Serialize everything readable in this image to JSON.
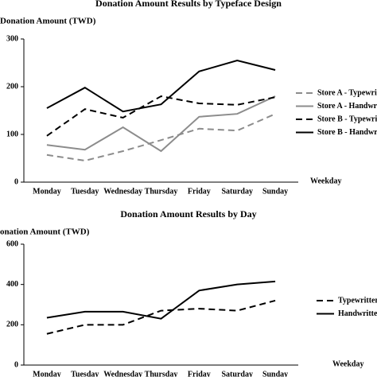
{
  "chart_data": [
    {
      "type": "line",
      "title": "Donation Amount Results by Typeface Design",
      "y_label": "Donation Amount (TWD)",
      "x_label": "Weekday",
      "categories": [
        "Monday",
        "Tuesday",
        "Wednesday",
        "Thursday",
        "Friday",
        "Saturday",
        "Sunday"
      ],
      "ylim": [
        0,
        300
      ],
      "yticks": [
        0,
        100,
        200,
        300
      ],
      "series": [
        {
          "name": "Store A - Typewritten",
          "color": "#8c8c8c",
          "line_style": "dashed",
          "values": [
            57,
            45,
            65,
            88,
            112,
            108,
            143
          ]
        },
        {
          "name": "Store A - Handwritten",
          "color": "#8c8c8c",
          "line_style": "solid",
          "values": [
            78,
            68,
            115,
            65,
            137,
            143,
            180
          ]
        },
        {
          "name": "Store B - Typewritten",
          "color": "#000000",
          "line_style": "dashed",
          "values": [
            97,
            153,
            135,
            180,
            165,
            162,
            178
          ]
        },
        {
          "name": "Store B - Handwritten",
          "color": "#000000",
          "line_style": "solid",
          "values": [
            155,
            198,
            148,
            163,
            232,
            255,
            235
          ]
        }
      ]
    },
    {
      "type": "line",
      "title": "Donation Amount Results by Day",
      "y_label": "Donation Amount (TWD)",
      "x_label": "Weekday",
      "categories": [
        "Monday",
        "Tuesday",
        "Wednesday",
        "Thursday",
        "Friday",
        "Saturday",
        "Sunday"
      ],
      "ylim": [
        0,
        600
      ],
      "yticks": [
        0,
        200,
        400,
        600
      ],
      "series": [
        {
          "name": "Typewritten",
          "color": "#000000",
          "line_style": "dashed",
          "values": [
            155,
            200,
            200,
            270,
            280,
            270,
            320
          ]
        },
        {
          "name": "Handwritten",
          "color": "#000000",
          "line_style": "solid",
          "values": [
            235,
            265,
            265,
            230,
            370,
            400,
            415
          ]
        }
      ]
    }
  ]
}
